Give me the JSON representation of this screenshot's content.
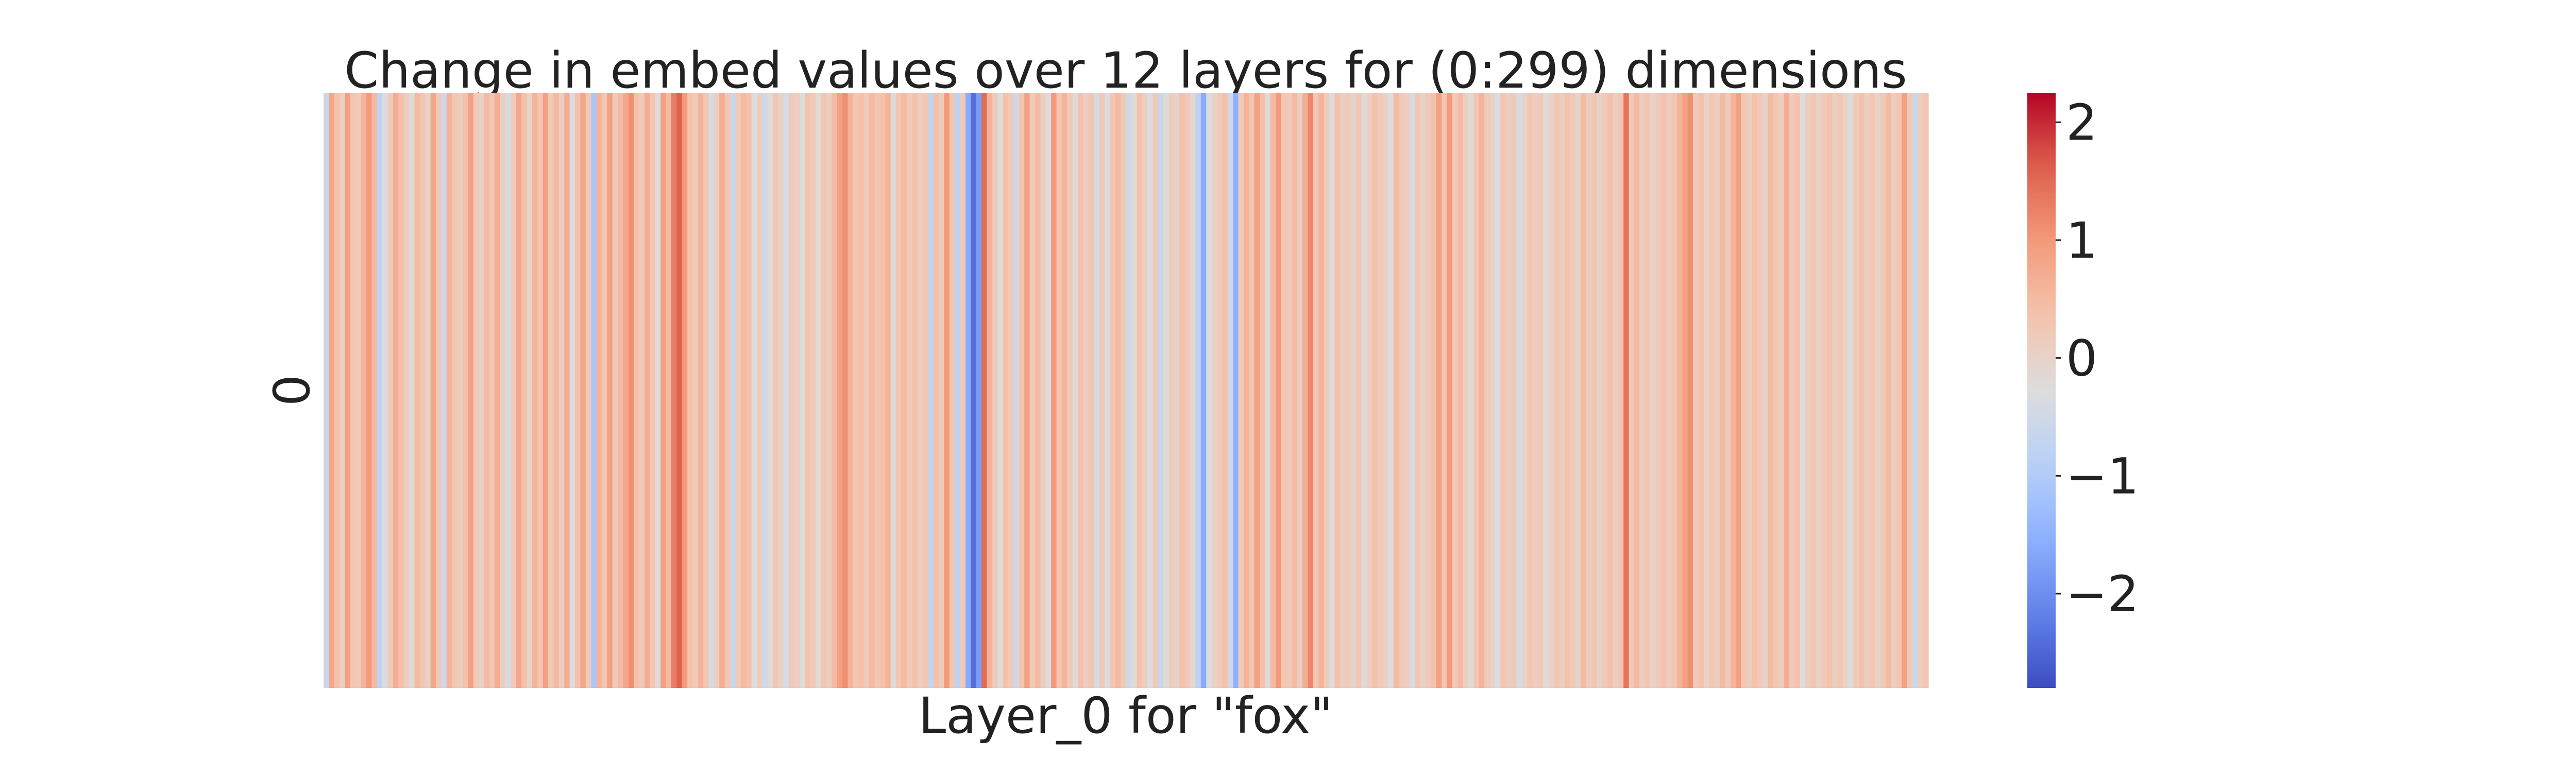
{
  "chart_data": {
    "type": "heatmap",
    "title": "Change in embed values over 12 layers for (0:299) dimensions",
    "xlabel": "Layer_0 for \"fox\"",
    "ylabel": "",
    "y_categories": [
      "0"
    ],
    "n_columns": 300,
    "colormap": "coolwarm",
    "value_range": [
      -2.8,
      2.25
    ],
    "colorbar_ticks": [
      2,
      1,
      0,
      -1,
      -2
    ],
    "colorbar_tick_labels": [
      "2",
      "1",
      "0",
      "−1",
      "−2"
    ],
    "grid": false,
    "legend": "colorbar-right",
    "values": [
      [
        -0.6,
        0.8,
        0.4,
        0.1,
        0.9,
        0.3,
        0.2,
        0.6,
        1.0,
        0.5,
        -0.8,
        -0.3,
        0.2,
        0.7,
        0.4,
        0.1,
        -0.2,
        0.5,
        0.3,
        0.0,
        0.8,
        0.2,
        -0.5,
        0.6,
        0.3,
        0.1,
        0.4,
        0.9,
        0.2,
        0.0,
        0.5,
        0.3,
        0.7,
        0.1,
        -0.4,
        0.2,
        0.8,
        0.4,
        0.0,
        0.6,
        0.3,
        0.9,
        0.2,
        0.5,
        0.1,
        0.7,
        -0.3,
        0.4,
        0.8,
        0.2,
        -1.1,
        0.6,
        0.3,
        0.9,
        0.2,
        0.5,
        0.8,
        1.1,
        0.4,
        0.2,
        0.7,
        0.3,
        -0.2,
        0.9,
        0.5,
        1.3,
        1.6,
        1.0,
        0.4,
        0.2,
        0.6,
        0.3,
        -0.4,
        0.1,
        0.7,
        0.3,
        -0.6,
        0.2,
        0.5,
        0.4,
        -0.3,
        0.1,
        -0.5,
        -0.2,
        0.3,
        0.0,
        -0.4,
        0.2,
        0.1,
        -0.3,
        0.4,
        0.2,
        -0.2,
        0.3,
        0.1,
        0.5,
        0.9,
        1.1,
        0.6,
        0.3,
        0.4,
        0.2,
        0.5,
        0.3,
        0.4,
        0.6,
        -0.2,
        0.3,
        0.5,
        0.2,
        0.4,
        0.1,
        0.3,
        -0.7,
        0.4,
        0.2,
        1.0,
        0.3,
        -0.8,
        0.2,
        -1.6,
        -2.4,
        -1.8,
        1.5,
        0.6,
        0.2,
        -0.3,
        0.4,
        0.2,
        -0.5,
        0.3,
        0.9,
        0.2,
        0.5,
        0.1,
        -0.3,
        1.0,
        0.3,
        0.6,
        0.2,
        -0.2,
        0.4,
        0.1,
        0.3,
        -0.4,
        0.2,
        -0.3,
        0.3,
        0.5,
        0.2,
        -0.5,
        -0.2,
        0.4,
        0.1,
        -0.3,
        0.2,
        -0.6,
        -0.2,
        0.1,
        0.0,
        0.4,
        0.2,
        -0.1,
        -0.8,
        -1.6,
        -0.3,
        0.0,
        0.2,
        0.4,
        -0.5,
        -1.5,
        0.2,
        0.6,
        0.3,
        0.9,
        0.4,
        -0.2,
        0.5,
        1.0,
        0.3,
        0.2,
        0.5,
        0.1,
        0.7,
        1.2,
        0.3,
        0.6,
        0.2,
        -0.3,
        0.4,
        0.1,
        0.2,
        0.0,
        0.3,
        -0.2,
        0.1,
        0.4,
        0.2,
        0.0,
        -0.3,
        0.5,
        0.2,
        0.1,
        -0.4,
        0.3,
        0.0,
        0.2,
        0.4,
        0.9,
        0.3,
        1.0,
        0.2,
        0.5,
        0.1,
        -0.2,
        0.3,
        0.6,
        0.2,
        0.0,
        -0.3,
        0.3,
        0.1,
        0.2,
        -0.4,
        0.0,
        0.3,
        0.1,
        0.2,
        -0.2,
        0.0,
        0.3,
        0.1,
        0.4,
        0.2,
        0.0,
        0.5,
        0.1,
        0.3,
        0.0,
        0.2,
        0.4,
        0.1,
        0.3,
        1.4,
        0.2,
        0.5,
        0.1,
        0.3,
        0.0,
        0.2,
        0.4,
        0.1,
        0.3,
        0.6,
        0.9,
        1.1,
        0.2,
        0.4,
        0.0,
        0.3,
        0.1,
        0.5,
        0.2,
        0.6,
        0.9,
        0.3,
        0.1,
        0.4,
        0.2,
        0.0,
        0.5,
        0.3,
        0.1,
        0.7,
        0.2,
        0.4,
        -0.3,
        0.1,
        0.3,
        0.0,
        0.2,
        0.4,
        0.1,
        0.3,
        0.0,
        -0.2,
        0.2,
        0.4,
        0.1,
        0.3,
        0.0,
        0.2,
        0.5,
        0.1,
        0.3,
        0.9,
        0.2,
        -0.6,
        0.1,
        0.3
      ]
    ]
  }
}
